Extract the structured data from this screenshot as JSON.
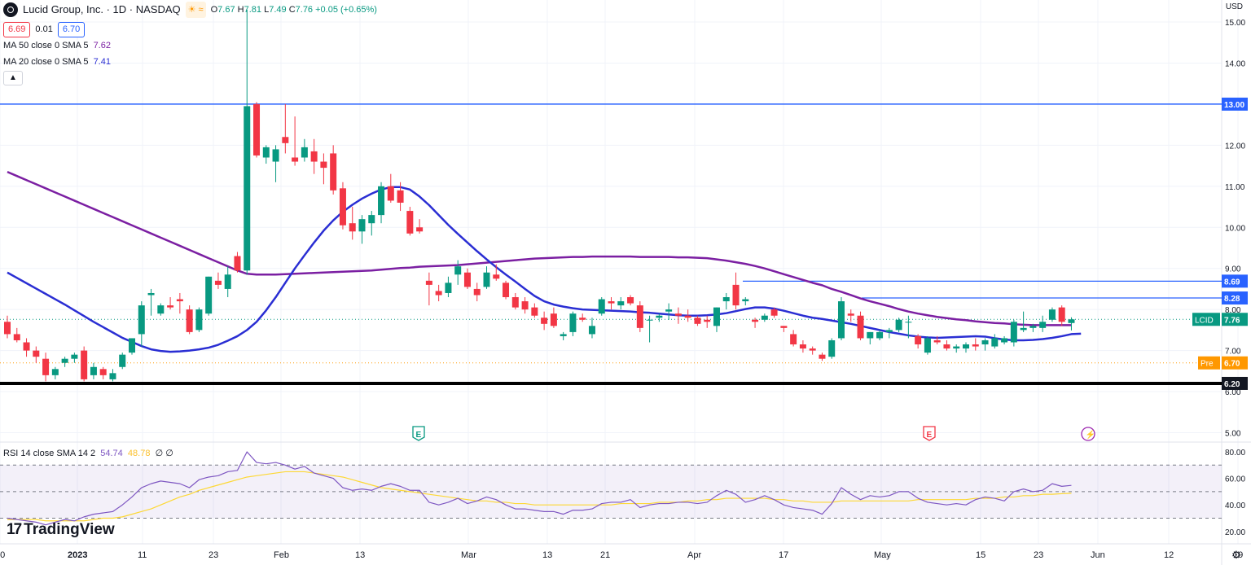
{
  "header": {
    "title": "Lucid Group, Inc. · 1D · NASDAQ",
    "ohlc": {
      "o_label": "O",
      "o": "7.67",
      "h_label": "H",
      "h": "7.81",
      "l_label": "L",
      "l": "7.49",
      "c_label": "C",
      "c": "7.76",
      "change": "+0.05 (+0.65%)"
    },
    "bid": "6.69",
    "spread": "0.01",
    "ask": "6.70",
    "ma50": {
      "label": "MA 50 close 0 SMA 5",
      "value": "7.62"
    },
    "ma20": {
      "label": "MA 20 close 0 SMA 5",
      "value": "7.41"
    }
  },
  "currency": "USD",
  "price_axis": {
    "ticks": [
      "15.00",
      "14.00",
      "12.00",
      "11.00",
      "10.00",
      "9.00",
      "8.00",
      "7.00",
      "6.00",
      "5.00"
    ],
    "tags": [
      {
        "label": "13.00",
        "color": "#2962ff"
      },
      {
        "label": "8.69",
        "color": "#2962ff"
      },
      {
        "label": "8.28",
        "color": "#2962ff"
      },
      {
        "name": "LCID",
        "label": "7.76",
        "color": "#089981"
      },
      {
        "name": "Pre",
        "label": "6.70",
        "color": "#ff9800"
      },
      {
        "label": "6.20",
        "color": "#131722"
      }
    ]
  },
  "time_axis": [
    "20",
    "2023",
    "11",
    "23",
    "Feb",
    "13",
    "Mar",
    "13",
    "21",
    "Apr",
    "17",
    "May",
    "15",
    "23",
    "Jun",
    "12",
    "19"
  ],
  "event_markers": [
    {
      "icon": "earnings-icon",
      "label": "E",
      "color": "#089981"
    },
    {
      "icon": "earnings-icon",
      "label": "E",
      "color": "#f23645"
    },
    {
      "icon": "flash-icon",
      "label": "⚡",
      "color": "#9c27b0"
    }
  ],
  "rsi": {
    "label": "RSI 14 close SMA 14 2",
    "value": "54.74",
    "sma_value": "48.78",
    "extra": "∅ ∅",
    "ticks": [
      "80.00",
      "60.00",
      "40.00",
      "20.00"
    ]
  },
  "branding": "TradingView",
  "colors": {
    "up": "#089981",
    "down": "#f23645",
    "ma50": "#7b1fa2",
    "ma20": "#2a2ed3",
    "hline": "#2962ff",
    "support": "#000000",
    "rsi": "#7e57c2",
    "rsi_sma": "#fdd835"
  },
  "chart_data": {
    "type": "candlestick",
    "symbol": "LCID",
    "interval": "1D",
    "y_range": [
      4.6,
      15.3
    ],
    "horizontal_levels": [
      13.0,
      8.69,
      8.28,
      6.2
    ],
    "candles": [
      [
        7.7,
        7.85,
        7.3,
        7.4
      ],
      [
        7.4,
        7.55,
        7.2,
        7.25
      ],
      [
        7.2,
        7.3,
        6.85,
        7.0
      ],
      [
        7.0,
        7.1,
        6.7,
        6.85
      ],
      [
        6.8,
        6.95,
        6.25,
        6.4
      ],
      [
        6.4,
        6.6,
        6.3,
        6.55
      ],
      [
        6.7,
        6.85,
        6.6,
        6.8
      ],
      [
        6.8,
        6.95,
        6.7,
        6.9
      ],
      [
        7.0,
        7.1,
        6.25,
        6.3
      ],
      [
        6.4,
        6.7,
        6.3,
        6.6
      ],
      [
        6.55,
        6.6,
        6.3,
        6.4
      ],
      [
        6.3,
        6.55,
        6.25,
        6.45
      ],
      [
        6.6,
        6.95,
        6.55,
        6.9
      ],
      [
        6.95,
        7.3,
        6.9,
        7.3
      ],
      [
        7.4,
        8.2,
        7.1,
        8.1
      ],
      [
        8.35,
        8.5,
        7.85,
        8.4
      ],
      [
        7.9,
        8.15,
        7.85,
        8.1
      ],
      [
        8.1,
        8.3,
        8.0,
        8.05
      ],
      [
        8.25,
        8.4,
        7.9,
        8.2
      ],
      [
        8.0,
        8.1,
        7.4,
        7.45
      ],
      [
        7.5,
        8.05,
        7.45,
        8.0
      ],
      [
        7.9,
        8.8,
        7.85,
        8.8
      ],
      [
        8.7,
        8.9,
        8.5,
        8.6
      ],
      [
        8.5,
        9.05,
        8.3,
        8.85
      ],
      [
        9.3,
        9.4,
        8.9,
        8.95
      ],
      [
        8.95,
        15.3,
        8.85,
        12.95
      ],
      [
        13.0,
        13.05,
        11.7,
        11.75
      ],
      [
        11.7,
        12.0,
        11.55,
        11.95
      ],
      [
        11.6,
        12.0,
        11.1,
        11.9
      ],
      [
        12.2,
        13.0,
        11.8,
        12.05
      ],
      [
        11.7,
        12.7,
        11.5,
        11.6
      ],
      [
        11.7,
        12.15,
        11.6,
        11.95
      ],
      [
        11.85,
        12.15,
        11.3,
        11.6
      ],
      [
        11.6,
        11.8,
        11.05,
        11.45
      ],
      [
        11.8,
        12.0,
        10.8,
        10.9
      ],
      [
        10.95,
        11.1,
        9.95,
        10.05
      ],
      [
        10.1,
        10.5,
        9.7,
        9.9
      ],
      [
        9.9,
        10.3,
        9.6,
        10.2
      ],
      [
        10.1,
        10.4,
        9.8,
        10.3
      ],
      [
        10.3,
        11.1,
        10.1,
        11.0
      ],
      [
        11.0,
        11.3,
        10.6,
        10.65
      ],
      [
        10.9,
        11.1,
        10.4,
        10.6
      ],
      [
        10.4,
        10.5,
        9.8,
        9.85
      ],
      [
        10.0,
        10.2,
        9.85,
        9.9
      ],
      [
        8.7,
        8.9,
        8.1,
        8.6
      ],
      [
        8.45,
        8.6,
        8.2,
        8.35
      ],
      [
        8.4,
        8.8,
        8.3,
        8.65
      ],
      [
        8.85,
        9.2,
        8.6,
        9.05
      ],
      [
        8.9,
        9.0,
        8.5,
        8.55
      ],
      [
        8.5,
        8.65,
        8.2,
        8.35
      ],
      [
        8.55,
        9.05,
        8.5,
        8.9
      ],
      [
        8.85,
        9.1,
        8.7,
        8.75
      ],
      [
        8.65,
        8.7,
        8.25,
        8.3
      ],
      [
        8.3,
        8.4,
        8.0,
        8.05
      ],
      [
        8.2,
        8.3,
        7.9,
        8.0
      ],
      [
        8.05,
        8.15,
        7.8,
        7.85
      ],
      [
        7.8,
        7.95,
        7.5,
        7.65
      ],
      [
        7.9,
        8.05,
        7.55,
        7.6
      ],
      [
        7.35,
        7.45,
        7.25,
        7.4
      ],
      [
        7.45,
        7.95,
        7.35,
        7.9
      ],
      [
        7.8,
        7.9,
        7.7,
        7.75
      ],
      [
        7.4,
        7.8,
        7.3,
        7.6
      ],
      [
        7.9,
        8.3,
        7.85,
        8.25
      ],
      [
        8.2,
        8.3,
        8.0,
        8.15
      ],
      [
        8.1,
        8.3,
        8.0,
        8.2
      ],
      [
        8.3,
        8.35,
        8.1,
        8.15
      ],
      [
        8.1,
        8.2,
        7.45,
        7.55
      ],
      [
        7.75,
        7.85,
        7.2,
        7.75
      ],
      [
        7.8,
        7.9,
        7.7,
        7.85
      ],
      [
        7.95,
        8.15,
        7.75,
        8.0
      ],
      [
        7.9,
        8.05,
        7.65,
        7.85
      ],
      [
        7.85,
        8.0,
        7.7,
        7.8
      ],
      [
        7.8,
        7.85,
        7.6,
        7.65
      ],
      [
        7.75,
        7.85,
        7.55,
        7.7
      ],
      [
        7.6,
        8.05,
        7.45,
        8.05
      ],
      [
        8.2,
        8.4,
        8.0,
        8.3
      ],
      [
        8.6,
        8.9,
        8.0,
        8.1
      ],
      [
        8.2,
        8.3,
        8.1,
        8.25
      ],
      [
        7.75,
        7.8,
        7.55,
        7.7
      ],
      [
        7.75,
        7.9,
        7.7,
        7.85
      ],
      [
        8.0,
        8.05,
        7.8,
        7.85
      ],
      [
        7.6,
        7.6,
        7.45,
        7.55
      ],
      [
        7.4,
        7.5,
        7.1,
        7.15
      ],
      [
        7.15,
        7.25,
        6.95,
        7.05
      ],
      [
        7.05,
        7.1,
        6.9,
        7.0
      ],
      [
        6.9,
        6.95,
        6.75,
        6.8
      ],
      [
        6.85,
        7.3,
        6.8,
        7.25
      ],
      [
        7.3,
        8.3,
        7.25,
        8.2
      ],
      [
        7.9,
        8.0,
        7.7,
        7.85
      ],
      [
        7.85,
        7.95,
        7.25,
        7.3
      ],
      [
        7.3,
        7.45,
        7.15,
        7.45
      ],
      [
        7.3,
        7.5,
        7.25,
        7.45
      ],
      [
        7.45,
        7.55,
        7.3,
        7.5
      ],
      [
        7.5,
        7.8,
        7.45,
        7.75
      ],
      [
        7.7,
        7.85,
        7.3,
        7.7
      ],
      [
        7.35,
        7.4,
        7.05,
        7.15
      ],
      [
        6.95,
        7.35,
        6.9,
        7.3
      ],
      [
        7.25,
        7.35,
        7.15,
        7.2
      ],
      [
        7.15,
        7.25,
        7.0,
        7.05
      ],
      [
        7.05,
        7.15,
        6.95,
        7.1
      ],
      [
        7.05,
        7.2,
        6.95,
        7.15
      ],
      [
        7.15,
        7.3,
        7.0,
        7.1
      ],
      [
        7.15,
        7.3,
        7.0,
        7.25
      ],
      [
        7.1,
        7.4,
        7.05,
        7.3
      ],
      [
        7.2,
        7.35,
        7.15,
        7.3
      ],
      [
        7.2,
        7.75,
        7.1,
        7.7
      ],
      [
        7.5,
        7.95,
        7.45,
        7.55
      ],
      [
        7.55,
        7.65,
        7.45,
        7.6
      ],
      [
        7.55,
        7.85,
        7.45,
        7.7
      ],
      [
        7.75,
        8.05,
        7.7,
        8.0
      ],
      [
        8.05,
        8.1,
        7.6,
        7.7
      ],
      [
        7.67,
        7.81,
        7.49,
        7.76
      ]
    ],
    "ma50": [
      11.35,
      11.25,
      11.15,
      11.05,
      10.95,
      10.85,
      10.75,
      10.65,
      10.55,
      10.45,
      10.35,
      10.25,
      10.15,
      10.05,
      9.95,
      9.85,
      9.75,
      9.65,
      9.55,
      9.45,
      9.35,
      9.25,
      9.15,
      9.05,
      8.95,
      8.87,
      8.85,
      8.85,
      8.85,
      8.86,
      8.87,
      8.88,
      8.89,
      8.9,
      8.91,
      8.92,
      8.93,
      8.94,
      8.95,
      8.97,
      8.99,
      9.01,
      9.02,
      9.04,
      9.05,
      9.06,
      9.07,
      9.08,
      9.1,
      9.12,
      9.14,
      9.16,
      9.18,
      9.2,
      9.22,
      9.24,
      9.25,
      9.26,
      9.27,
      9.28,
      9.28,
      9.29,
      9.29,
      9.29,
      9.29,
      9.29,
      9.28,
      9.28,
      9.28,
      9.28,
      9.27,
      9.27,
      9.26,
      9.25,
      9.22,
      9.19,
      9.15,
      9.11,
      9.06,
      9.0,
      8.93,
      8.86,
      8.79,
      8.72,
      8.65,
      8.59,
      8.5,
      8.43,
      8.35,
      8.27,
      8.2,
      8.14,
      8.08,
      8.01,
      7.95,
      7.9,
      7.86,
      7.82,
      7.79,
      7.76,
      7.74,
      7.71,
      7.69,
      7.67,
      7.66,
      7.64,
      7.63,
      7.62,
      7.62,
      7.62,
      7.62,
      7.62
    ],
    "ma20": [
      8.9,
      8.77,
      8.64,
      8.51,
      8.38,
      8.25,
      8.12,
      7.98,
      7.84,
      7.7,
      7.57,
      7.44,
      7.31,
      7.21,
      7.11,
      7.03,
      6.99,
      6.97,
      6.98,
      7.0,
      7.03,
      7.07,
      7.14,
      7.24,
      7.35,
      7.5,
      7.7,
      7.98,
      8.3,
      8.65,
      9.0,
      9.32,
      9.63,
      9.92,
      10.17,
      10.38,
      10.55,
      10.7,
      10.82,
      10.92,
      10.98,
      10.98,
      10.92,
      10.75,
      10.54,
      10.3,
      10.06,
      9.84,
      9.63,
      9.42,
      9.22,
      9.03,
      8.85,
      8.68,
      8.5,
      8.33,
      8.2,
      8.12,
      8.07,
      8.03,
      8.0,
      7.99,
      7.98,
      7.97,
      7.96,
      7.95,
      7.93,
      7.92,
      7.9,
      7.88,
      7.86,
      7.85,
      7.85,
      7.86,
      7.88,
      7.91,
      7.96,
      8.01,
      8.05,
      8.05,
      8.02,
      7.97,
      7.91,
      7.85,
      7.8,
      7.77,
      7.73,
      7.69,
      7.65,
      7.6,
      7.55,
      7.5,
      7.45,
      7.41,
      7.37,
      7.34,
      7.32,
      7.31,
      7.32,
      7.33,
      7.34,
      7.35,
      7.34,
      7.3,
      7.27,
      7.25,
      7.25,
      7.26,
      7.28,
      7.31,
      7.35,
      7.4,
      7.41
    ],
    "rsi": [
      30,
      29,
      28,
      27,
      25,
      27,
      29,
      28,
      31,
      33,
      34,
      35,
      40,
      46,
      53,
      56,
      58,
      57,
      56,
      53,
      59,
      61,
      62,
      65,
      66,
      80,
      72,
      71,
      72,
      70,
      67,
      69,
      64,
      62,
      60,
      53,
      51,
      52,
      51,
      54,
      56,
      54,
      51,
      51,
      42,
      40,
      42,
      45,
      41,
      43,
      46,
      44,
      40,
      37,
      37,
      36,
      35,
      35,
      33,
      36,
      36,
      37,
      41,
      42,
      42,
      44,
      38,
      40,
      41,
      41,
      42,
      42,
      41,
      42,
      47,
      51,
      48,
      42,
      44,
      47,
      44,
      40,
      38,
      37,
      36,
      33,
      41,
      53,
      48,
      44,
      47,
      46,
      47,
      50,
      50,
      45,
      42,
      41,
      40,
      41,
      40,
      44,
      46,
      45,
      43,
      50,
      52,
      50,
      51,
      56,
      54,
      54.74
    ],
    "rsi_sma": [
      29,
      29,
      29,
      29,
      28,
      28,
      28,
      28,
      28,
      29,
      30,
      30,
      31,
      33,
      35,
      37,
      40,
      43,
      46,
      48,
      51,
      53,
      55,
      57,
      59,
      61,
      62,
      63,
      64,
      65,
      65,
      65,
      64,
      63,
      62,
      61,
      59,
      57,
      55,
      53,
      52,
      51,
      50,
      49,
      48,
      47,
      46,
      45,
      44,
      43,
      43,
      42,
      42,
      41,
      41,
      40,
      40,
      40,
      40,
      40,
      40,
      40,
      40,
      40,
      41,
      41,
      41,
      41,
      42,
      42,
      42,
      43,
      43,
      44,
      44,
      45,
      45,
      45,
      45,
      45,
      44,
      44,
      43,
      43,
      42,
      42,
      42,
      43,
      43,
      43,
      43,
      43,
      43,
      43,
      43,
      44,
      44,
      44,
      44,
      44,
      44,
      45,
      45,
      45,
      46,
      46,
      47,
      47,
      48,
      48,
      48.5,
      48.78
    ],
    "rsi_range": [
      15,
      90
    ],
    "rsi_band": [
      30,
      70
    ]
  }
}
